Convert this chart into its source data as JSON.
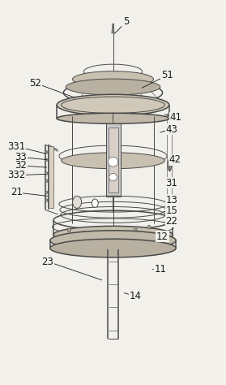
{
  "bg_color": "#f2f0eb",
  "line_color": "#4a4a4a",
  "label_fontsize": 8.5,
  "label_color": "#1a1a1a",
  "fig_width": 2.79,
  "fig_height": 4.74,
  "dpi": 100,
  "leaders": {
    "5": [
      0.56,
      0.055,
      0.5,
      0.09
    ],
    "51": [
      0.74,
      0.195,
      0.62,
      0.23
    ],
    "52": [
      0.155,
      0.215,
      0.34,
      0.255
    ],
    "41": [
      0.78,
      0.305,
      0.72,
      0.295
    ],
    "43": [
      0.76,
      0.335,
      0.7,
      0.345
    ],
    "42": [
      0.775,
      0.415,
      0.76,
      0.405
    ],
    "31": [
      0.76,
      0.475,
      0.74,
      0.48
    ],
    "331": [
      0.07,
      0.38,
      0.21,
      0.4
    ],
    "33": [
      0.09,
      0.408,
      0.215,
      0.415
    ],
    "32": [
      0.09,
      0.43,
      0.215,
      0.435
    ],
    "332": [
      0.07,
      0.455,
      0.21,
      0.452
    ],
    "21": [
      0.07,
      0.5,
      0.22,
      0.51
    ],
    "13": [
      0.76,
      0.52,
      0.73,
      0.525
    ],
    "15": [
      0.76,
      0.548,
      0.725,
      0.55
    ],
    "22": [
      0.76,
      0.575,
      0.715,
      0.578
    ],
    "12": [
      0.72,
      0.615,
      0.68,
      0.625
    ],
    "23": [
      0.21,
      0.68,
      0.46,
      0.73
    ],
    "11": [
      0.71,
      0.7,
      0.665,
      0.7
    ],
    "14": [
      0.6,
      0.77,
      0.54,
      0.76
    ]
  }
}
